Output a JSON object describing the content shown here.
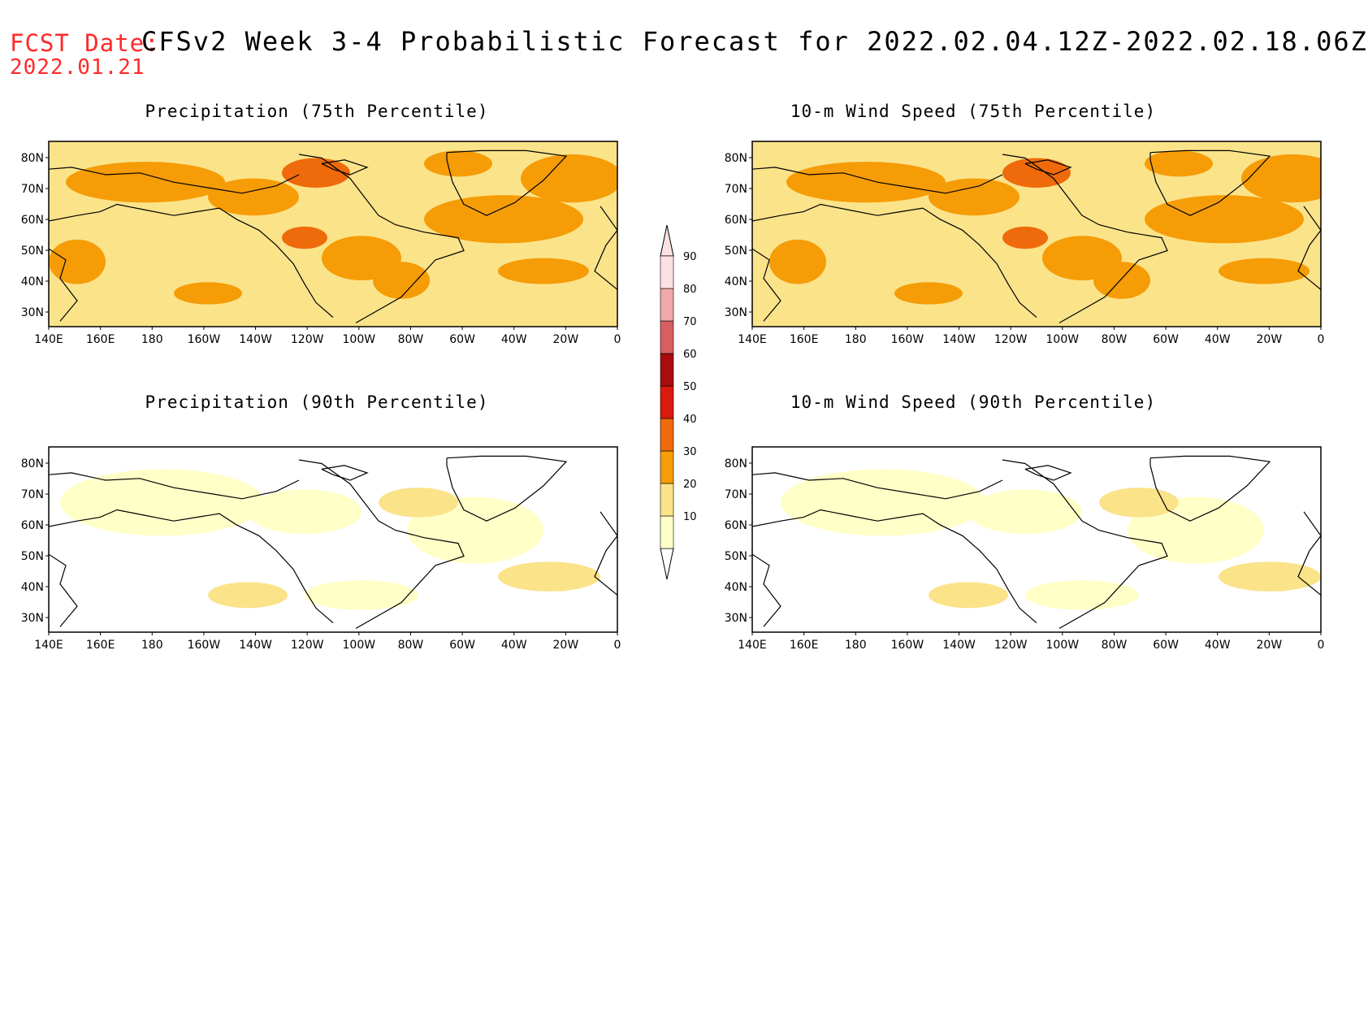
{
  "header": {
    "label": "FCST Date:",
    "date": "2022.01.21",
    "title": "CFSv2 Week 3-4 Probabilistic Forecast for 2022.02.04.12Z-2022.02.18.06Z"
  },
  "panels": [
    {
      "title": "Precipitation (75th Percentile)",
      "intensity": "high"
    },
    {
      "title": "10-m Wind Speed (75th Percentile)",
      "intensity": "high"
    },
    {
      "title": "Precipitation (90th Percentile)",
      "intensity": "low"
    },
    {
      "title": "10-m Wind Speed (90th Percentile)",
      "intensity": "low"
    }
  ],
  "axes": {
    "lon_labels": [
      "140E",
      "160E",
      "180",
      "160W",
      "140W",
      "120W",
      "100W",
      "80W",
      "60W",
      "40W",
      "20W",
      "0"
    ],
    "lat_labels": [
      "80N",
      "70N",
      "60N",
      "50N",
      "40N",
      "30N"
    ]
  },
  "colorbar": {
    "levels": [
      "10",
      "20",
      "30",
      "40",
      "50",
      "60",
      "70",
      "80",
      "90"
    ],
    "colors": [
      "#ffffc8",
      "#fbe38a",
      "#f59c06",
      "#ee6a0a",
      "#d91a0f",
      "#a80c0c",
      "#d85f5f",
      "#f0a8a8",
      "#fbe1e1"
    ]
  }
}
